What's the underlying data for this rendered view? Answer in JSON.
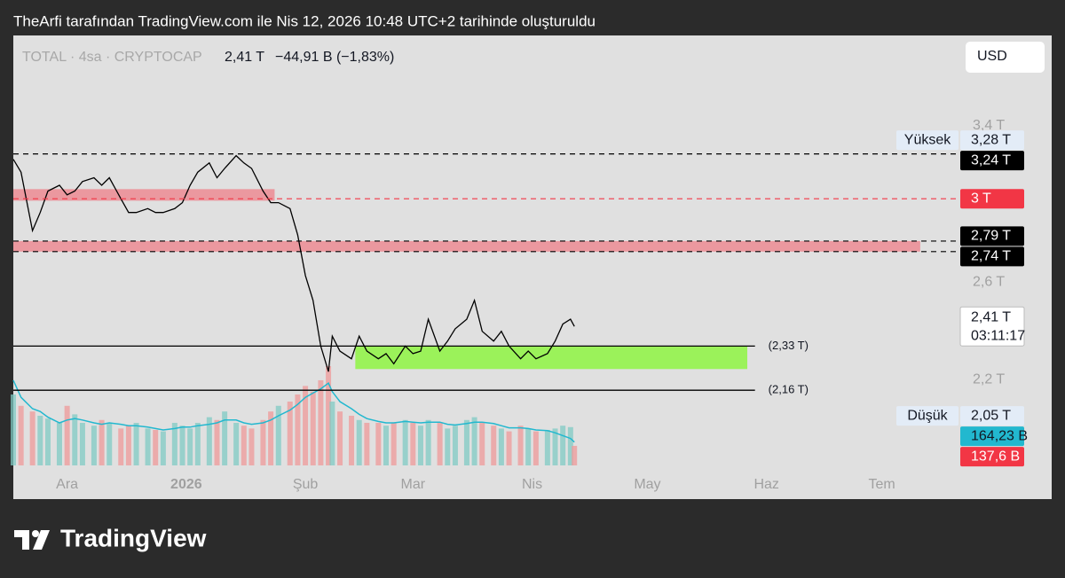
{
  "header": "TheArfi tarafından TradingView.com ile Nis 12, 2026 10:48 UTC+2 tarihinde oluşturuldu",
  "footer": {
    "logo": "TradingView"
  },
  "chart_data": {
    "type": "line",
    "symbol": "TOTAL · 4sa · CRYPTOCAP",
    "change": "−44,91 B (−1,83%)",
    "currency": "USD",
    "color": "#000000",
    "log_scale": true,
    "x": [
      0,
      2,
      5,
      7,
      9,
      12,
      14,
      16,
      18,
      21,
      23,
      25,
      28,
      30,
      32,
      35,
      37,
      39,
      42,
      44,
      46,
      48,
      51,
      53,
      55,
      58,
      60,
      62,
      65,
      67,
      69,
      72,
      74,
      76,
      78,
      80,
      82,
      83,
      85,
      88,
      90,
      92,
      95,
      97,
      99,
      102,
      104,
      106,
      108,
      111,
      113,
      115,
      118,
      120,
      122,
      125,
      127,
      129,
      132,
      134,
      136,
      139,
      141,
      143,
      145,
      146
    ],
    "values": [
      3.21,
      3.14,
      2.84,
      2.93,
      3.04,
      3.07,
      3.02,
      3.04,
      3.09,
      3.11,
      3.07,
      3.11,
      3.0,
      2.93,
      2.93,
      2.95,
      2.93,
      2.93,
      2.95,
      2.98,
      3.07,
      3.14,
      3.19,
      3.11,
      3.16,
      3.23,
      3.19,
      3.16,
      3.04,
      2.98,
      2.98,
      2.95,
      2.82,
      2.63,
      2.52,
      2.33,
      2.23,
      2.37,
      2.31,
      2.28,
      2.37,
      2.31,
      2.28,
      2.3,
      2.26,
      2.33,
      2.3,
      2.31,
      2.44,
      2.31,
      2.35,
      2.4,
      2.44,
      2.52,
      2.39,
      2.35,
      2.39,
      2.33,
      2.28,
      2.31,
      2.28,
      2.3,
      2.35,
      2.42,
      2.44,
      2.41
    ],
    "xlim": [
      0,
      245.5
    ],
    "xticks": [
      {
        "value": 14,
        "label": "Ara"
      },
      {
        "value": 45,
        "label": "2026"
      },
      {
        "value": 76,
        "label": "Şub"
      },
      {
        "value": 104,
        "label": "Mar"
      },
      {
        "value": 135,
        "label": "Nis"
      },
      {
        "value": 165,
        "label": "May"
      },
      {
        "value": 196,
        "label": "Haz"
      },
      {
        "value": 226,
        "label": "Tem"
      }
    ],
    "ylim": [
      1.89,
      3.97
    ],
    "yticks": [
      {
        "value": 3.4,
        "label": "3,4 T"
      },
      {
        "value": 2.6,
        "label": "2,6 T"
      },
      {
        "value": 2.2,
        "label": "2,2 T"
      }
    ],
    "last": {
      "value": 2.41,
      "label": "2,41 T",
      "countdown": "03:11:17"
    },
    "high": {
      "name": "Yüksek",
      "value": 3.28,
      "label": "3,28 T"
    },
    "low": {
      "name": "Düşük",
      "value": 2.05,
      "label": "2,05 T"
    },
    "levels": [
      {
        "value": 3.24,
        "label": "3,24 T",
        "color": "#000000"
      },
      {
        "value": 3,
        "label": "3 T",
        "color": "#f23645"
      },
      {
        "value": 2.79,
        "label": "2,79 T",
        "color": "#000000"
      },
      {
        "value": 2.74,
        "label": "2,74 T",
        "color": "#000000"
      }
    ],
    "lines": [
      {
        "value": 2.33,
        "label": "(2,33 T)",
        "x_end": 193
      },
      {
        "value": 2.16,
        "label": "(2,16 T)",
        "x_end": 193
      }
    ],
    "zones": [
      {
        "from": 2.99,
        "to": 3.05,
        "x": [
          0,
          68
        ],
        "color": "#ec8b93"
      },
      {
        "from": 2.74,
        "to": 2.79,
        "x": [
          0,
          236
        ],
        "color": "#ec8b93"
      },
      {
        "from": 2.24,
        "to": 2.33,
        "x": [
          89,
          191
        ],
        "color": "#8ef542"
      }
    ],
    "y2lim": [
      0,
      3030
    ],
    "volume": {
      "up_color": "#80cbc4",
      "down_color": "#ef9a9a",
      "label": "137,6 B",
      "label_color": "#f23645",
      "values": [
        500,
        420,
        380,
        350,
        330,
        300,
        420,
        360,
        300,
        280,
        320,
        300,
        260,
        280,
        300,
        260,
        250,
        240,
        300,
        280,
        260,
        300,
        340,
        320,
        380,
        300,
        280,
        260,
        320,
        380,
        420,
        450,
        500,
        560,
        520,
        600,
        700,
        450,
        380,
        350,
        320,
        300,
        300,
        280,
        300,
        320,
        300,
        280,
        320,
        300,
        260,
        280,
        320,
        340,
        300,
        280,
        260,
        240,
        280,
        260,
        240,
        250,
        260,
        280,
        270,
        137.6
      ]
    },
    "volume_ma": {
      "color": "#22b8cf",
      "label": "164,23 B",
      "values": [
        600,
        480,
        400,
        380,
        340,
        300,
        320,
        330,
        320,
        300,
        290,
        300,
        290,
        280,
        280,
        270,
        260,
        250,
        260,
        270,
        270,
        280,
        290,
        300,
        320,
        320,
        300,
        290,
        300,
        320,
        350,
        390,
        430,
        480,
        510,
        540,
        580,
        520,
        450,
        400,
        360,
        330,
        310,
        300,
        300,
        310,
        305,
        300,
        305,
        305,
        290,
        285,
        295,
        305,
        305,
        295,
        280,
        265,
        265,
        260,
        250,
        245,
        230,
        210,
        190,
        164.23
      ]
    }
  }
}
